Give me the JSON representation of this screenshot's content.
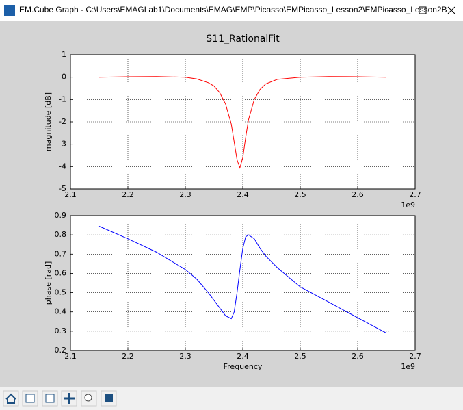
{
  "window": {
    "title": "EM.Cube Graph - C:\\Users\\EMAGLab1\\Documents\\EMAG\\EMP\\Picasso\\EMPicasso_Lesson2\\EMPicasso_Lesson2B"
  },
  "title": "S11_RationalFit",
  "chart_data": [
    {
      "type": "line",
      "ylabel": "magnitude [dB]",
      "x": [
        2150000000,
        2200000000,
        2250000000,
        2300000000,
        2320000000,
        2340000000,
        2350000000,
        2360000000,
        2370000000,
        2380000000,
        2385000000,
        2390000000,
        2395000000,
        2400000000,
        2405000000,
        2410000000,
        2420000000,
        2430000000,
        2440000000,
        2460000000,
        2500000000,
        2550000000,
        2600000000,
        2650000000
      ],
      "series": [
        {
          "color": "#ff0000",
          "values": [
            0.0,
            0.02,
            0.03,
            0.0,
            -0.08,
            -0.25,
            -0.4,
            -0.7,
            -1.2,
            -2.1,
            -2.9,
            -3.7,
            -4.05,
            -3.6,
            -2.7,
            -1.9,
            -1.0,
            -0.55,
            -0.3,
            -0.1,
            0.0,
            0.03,
            0.02,
            0.0
          ]
        }
      ],
      "xlim": [
        2100000000,
        2700000000
      ],
      "xticks": [
        {
          "value": 2100000000,
          "label": "2.1"
        },
        {
          "value": 2200000000,
          "label": "2.2"
        },
        {
          "value": 2300000000,
          "label": "2.3"
        },
        {
          "value": 2400000000,
          "label": "2.4"
        },
        {
          "value": 2500000000,
          "label": "2.5"
        },
        {
          "value": 2600000000,
          "label": "2.6"
        },
        {
          "value": 2700000000,
          "label": "2.7"
        }
      ],
      "x_offset_label": "1e9",
      "ylim": [
        -5,
        1
      ],
      "yticks": [
        -5,
        -4,
        -3,
        -2,
        -1,
        0,
        1
      ],
      "grid": true
    },
    {
      "type": "line",
      "ylabel": "phase [rad]",
      "xlabel": "Frequency",
      "x": [
        2150000000,
        2200000000,
        2250000000,
        2300000000,
        2320000000,
        2340000000,
        2350000000,
        2360000000,
        2370000000,
        2380000000,
        2385000000,
        2390000000,
        2395000000,
        2400000000,
        2405000000,
        2410000000,
        2420000000,
        2430000000,
        2440000000,
        2460000000,
        2500000000,
        2550000000,
        2600000000,
        2650000000
      ],
      "series": [
        {
          "color": "#0000ff",
          "values": [
            0.845,
            0.78,
            0.71,
            0.62,
            0.57,
            0.5,
            0.46,
            0.42,
            0.38,
            0.365,
            0.4,
            0.5,
            0.62,
            0.73,
            0.79,
            0.8,
            0.78,
            0.73,
            0.69,
            0.63,
            0.53,
            0.45,
            0.37,
            0.29
          ]
        }
      ],
      "xlim": [
        2100000000,
        2700000000
      ],
      "xticks": [
        {
          "value": 2100000000,
          "label": "2.1"
        },
        {
          "value": 2200000000,
          "label": "2.2"
        },
        {
          "value": 2300000000,
          "label": "2.3"
        },
        {
          "value": 2400000000,
          "label": "2.4"
        },
        {
          "value": 2500000000,
          "label": "2.5"
        },
        {
          "value": 2600000000,
          "label": "2.6"
        },
        {
          "value": 2700000000,
          "label": "2.7"
        }
      ],
      "x_offset_label": "1e9",
      "ylim": [
        0.2,
        0.9
      ],
      "yticks": [
        0.2,
        0.3,
        0.4,
        0.5,
        0.6,
        0.7,
        0.8,
        0.9
      ],
      "grid": true
    }
  ]
}
